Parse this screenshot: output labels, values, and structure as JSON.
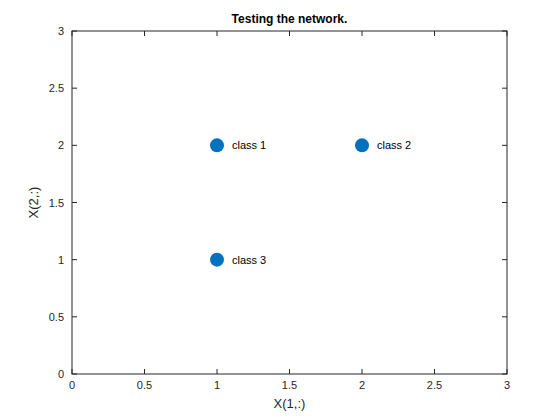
{
  "chart_data": {
    "type": "scatter",
    "title": "Testing the network.",
    "x_label": "X(1,:)",
    "y_label": "X(2,:)",
    "x": [
      1,
      2,
      1
    ],
    "values": [
      2,
      2,
      1
    ],
    "point_labels": [
      "class 1",
      "class 2",
      "class 3"
    ],
    "color": "#0072bd",
    "marker": "circle",
    "xlim": [
      0,
      3
    ],
    "ylim": [
      0,
      3
    ],
    "xticks": [
      0,
      0.5,
      1,
      1.5,
      2,
      2.5,
      3
    ],
    "yticks": [
      0,
      0.5,
      1,
      1.5,
      2,
      2.5,
      3
    ],
    "grid": false
  }
}
